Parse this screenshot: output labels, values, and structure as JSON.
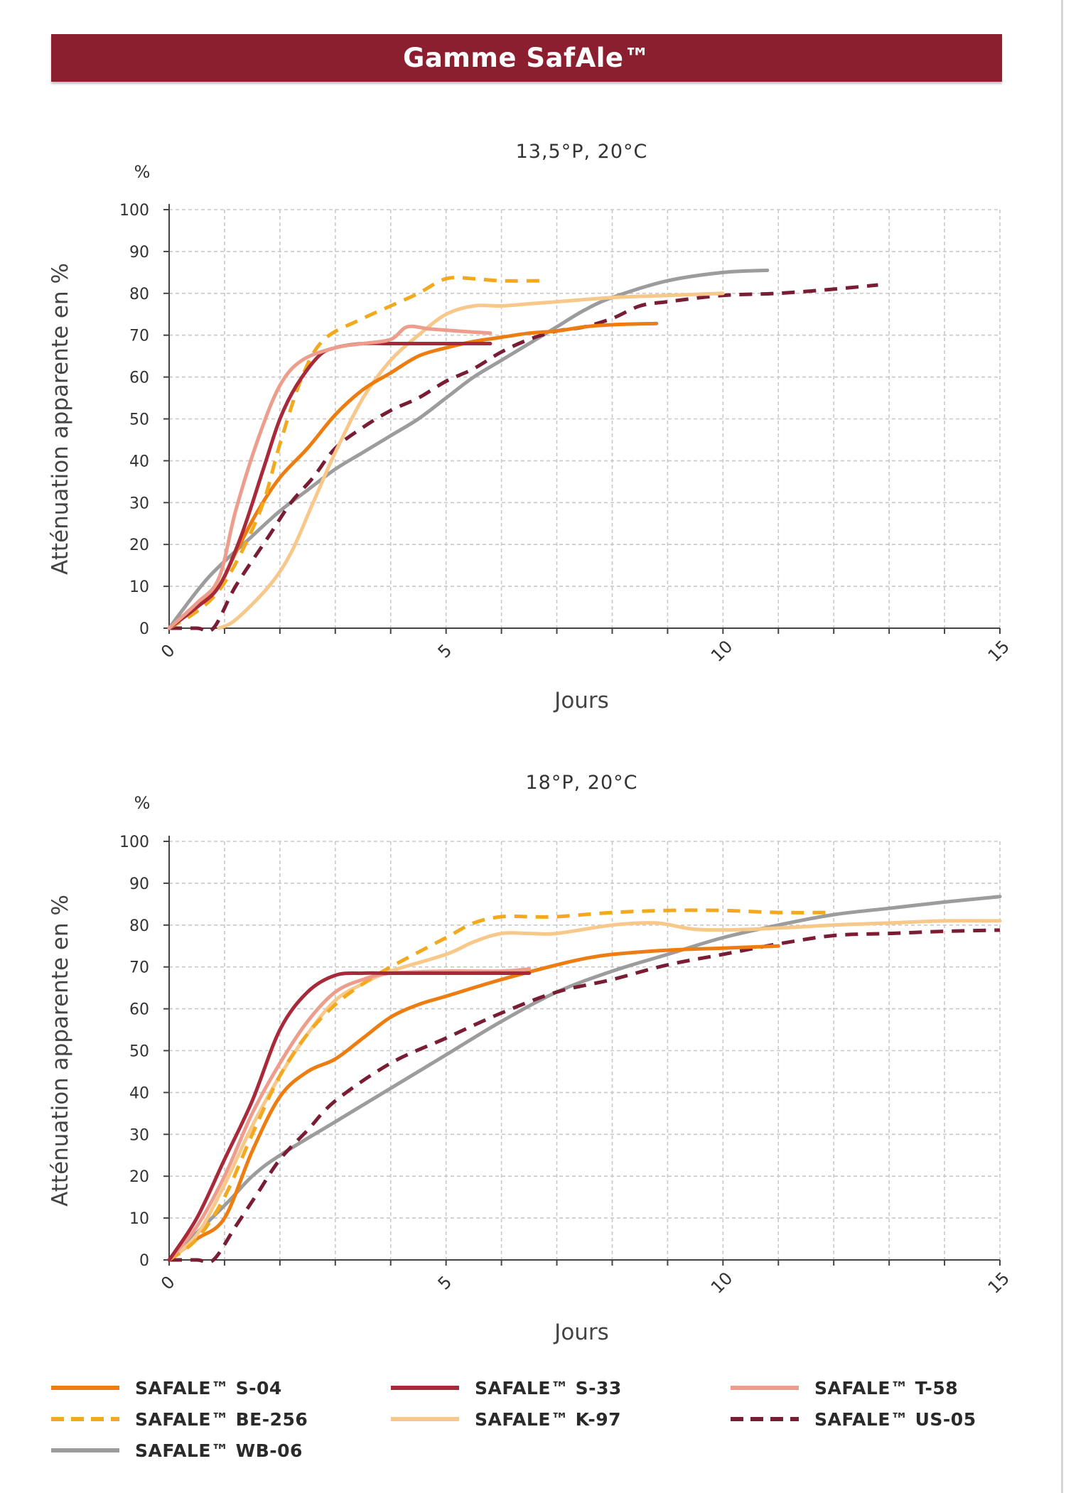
{
  "header": {
    "title": "Gamme SafAle™"
  },
  "colors": {
    "banner": "#8b1f2f",
    "s04": "#ee7d11",
    "s33": "#a82a3a",
    "t58": "#ec9d8c",
    "be256": "#f2a91d",
    "k97": "#f7c88a",
    "us05": "#7a1c33",
    "wb06": "#9c9c9c"
  },
  "legend": [
    {
      "key": "s04",
      "label": "SAFALE™ S-04",
      "dashed": false
    },
    {
      "key": "s33",
      "label": "SAFALE™ S-33",
      "dashed": false
    },
    {
      "key": "t58",
      "label": "SAFALE™ T-58",
      "dashed": false
    },
    {
      "key": "be256",
      "label": "SAFALE™ BE-256",
      "dashed": true
    },
    {
      "key": "k97",
      "label": "SAFALE™ K-97",
      "dashed": false
    },
    {
      "key": "us05",
      "label": "SAFALE™ US-05",
      "dashed": true
    },
    {
      "key": "wb06",
      "label": "SAFALE™ WB-06",
      "dashed": false
    }
  ],
  "chart_data": [
    {
      "type": "line",
      "title": "13,5°P, 20°C",
      "xlabel": "Jours",
      "ylabel": "Atténuation apparente en %",
      "yunit": "%",
      "xlim": [
        0,
        15
      ],
      "ylim": [
        0,
        100
      ],
      "xticks": [
        0,
        5,
        10,
        15
      ],
      "yticks": [
        0,
        10,
        20,
        30,
        40,
        50,
        60,
        70,
        80,
        90,
        100
      ],
      "grid": true,
      "series": [
        {
          "key": "wb06",
          "x": [
            0,
            0.7,
            1.5,
            2,
            2.5,
            3,
            3.5,
            4,
            4.5,
            5,
            5.5,
            6,
            6.5,
            7,
            7.5,
            8,
            9,
            10,
            10.8
          ],
          "y": [
            0,
            12,
            22,
            28,
            33,
            38,
            42,
            46,
            50,
            55,
            60,
            64,
            68,
            72,
            76,
            79,
            83,
            85,
            85.5
          ]
        },
        {
          "key": "us05",
          "x": [
            0,
            0.5,
            0.8,
            1.2,
            1.8,
            2.2,
            2.6,
            3,
            3.5,
            4,
            4.5,
            5,
            5.5,
            6,
            6.5,
            7,
            7.5,
            8,
            8.5,
            9,
            10,
            11,
            12,
            12.8
          ],
          "y": [
            0,
            0,
            0,
            10,
            22,
            30,
            36,
            43,
            48,
            52,
            55,
            59,
            62,
            66,
            69,
            71,
            72,
            74,
            77,
            78,
            79.5,
            80,
            81,
            82
          ]
        },
        {
          "key": "k97",
          "x": [
            0.9,
            1.2,
            1.8,
            2.2,
            2.6,
            3,
            3.5,
            4,
            4.5,
            5,
            5.5,
            6,
            6.5,
            7,
            8,
            9,
            10
          ],
          "y": [
            0,
            2,
            10,
            18,
            30,
            42,
            55,
            64,
            70,
            75,
            77,
            77,
            77.5,
            78,
            79,
            79.5,
            80
          ]
        },
        {
          "key": "s04",
          "x": [
            0,
            0.5,
            0.9,
            1.2,
            1.6,
            2,
            2.5,
            3,
            3.5,
            4,
            4.5,
            5,
            5.5,
            6,
            6.5,
            7,
            7.5,
            8,
            8.8
          ],
          "y": [
            0,
            5,
            10,
            18,
            28,
            36,
            43,
            51,
            57,
            61,
            65,
            67,
            68.5,
            69.5,
            70.5,
            71,
            72,
            72.5,
            72.8
          ]
        },
        {
          "key": "be256",
          "x": [
            0,
            0.5,
            0.9,
            1.3,
            1.7,
            2,
            2.4,
            2.8,
            3.5,
            4,
            4.5,
            5,
            5.5,
            6,
            6.8
          ],
          "y": [
            0,
            4,
            9,
            18,
            30,
            44,
            60,
            69,
            74,
            77,
            80,
            83.5,
            83.5,
            83,
            83
          ]
        },
        {
          "key": "s33",
          "x": [
            0,
            0.5,
            0.9,
            1.3,
            1.7,
            2,
            2.3,
            2.7,
            3,
            3.5,
            4,
            5,
            5.8
          ],
          "y": [
            0,
            5,
            10,
            22,
            38,
            50,
            58,
            65,
            67,
            68,
            68,
            68,
            68
          ]
        },
        {
          "key": "t58",
          "x": [
            0,
            0.5,
            0.9,
            1.2,
            1.6,
            2,
            2.4,
            3,
            3.5,
            4,
            4.3,
            4.7,
            5.2,
            5.8
          ],
          "y": [
            0,
            6,
            12,
            28,
            45,
            58,
            64,
            67,
            68,
            69,
            72,
            71.5,
            71,
            70.5
          ]
        }
      ]
    },
    {
      "type": "line",
      "title": "18°P, 20°C",
      "xlabel": "Jours",
      "ylabel": "Atténuation apparente en %",
      "yunit": "%",
      "xlim": [
        0,
        15
      ],
      "ylim": [
        0,
        100
      ],
      "xticks": [
        0,
        5,
        10,
        15
      ],
      "yticks": [
        0,
        10,
        20,
        30,
        40,
        50,
        60,
        70,
        80,
        90,
        100
      ],
      "grid": true,
      "series": [
        {
          "key": "wb06",
          "x": [
            0,
            1,
            1.5,
            2,
            3,
            4,
            5,
            6,
            7,
            8,
            9,
            10,
            11,
            12,
            13,
            14,
            15
          ],
          "y": [
            0,
            13,
            20,
            25,
            33,
            41,
            49,
            57,
            64,
            69,
            73,
            77,
            80,
            82.5,
            84,
            85.5,
            86.8
          ]
        },
        {
          "key": "us05",
          "x": [
            0,
            0.5,
            0.8,
            1.2,
            1.6,
            2,
            2.5,
            3,
            4,
            5,
            6,
            7,
            8,
            9,
            10,
            11,
            12,
            13,
            14,
            15
          ],
          "y": [
            0,
            0,
            0,
            8,
            16,
            24,
            31,
            38,
            47,
            53,
            59,
            64,
            67,
            70.5,
            73,
            75.5,
            77.5,
            78,
            78.5,
            78.8
          ]
        },
        {
          "key": "s04",
          "x": [
            0,
            0.5,
            1,
            1.5,
            2,
            2.5,
            3,
            3.5,
            4,
            4.5,
            5,
            6,
            7,
            7.5,
            8,
            9,
            10,
            11
          ],
          "y": [
            0,
            5,
            10,
            26,
            39,
            45,
            48,
            53,
            58,
            61,
            63,
            67,
            70.5,
            72,
            73,
            74,
            74.5,
            75
          ]
        },
        {
          "key": "k97",
          "x": [
            0,
            0.5,
            1,
            1.5,
            2,
            2.5,
            3,
            3.5,
            4,
            5,
            5.5,
            6,
            6.5,
            7,
            8,
            8.8,
            9.5,
            10.5,
            12,
            13,
            14,
            15
          ],
          "y": [
            0,
            6,
            18,
            32,
            44,
            54,
            62,
            66,
            69,
            73,
            76,
            78,
            78,
            78,
            80,
            80.5,
            79,
            79,
            80,
            80.5,
            81,
            81
          ]
        },
        {
          "key": "be256",
          "x": [
            0,
            0.5,
            1,
            1.5,
            2,
            2.5,
            3,
            3.5,
            4,
            5,
            5.5,
            6,
            6.5,
            7,
            8,
            9,
            10,
            11,
            12
          ],
          "y": [
            0,
            5,
            15,
            30,
            44,
            54,
            61,
            66,
            70,
            77,
            80.5,
            82,
            82,
            82,
            83,
            83.5,
            83.5,
            83,
            83
          ]
        },
        {
          "key": "t58",
          "x": [
            0,
            0.5,
            1,
            1.5,
            2,
            2.5,
            3,
            3.5,
            4,
            5,
            6,
            6.5
          ],
          "y": [
            0,
            8,
            20,
            35,
            47,
            57,
            64,
            67,
            68.5,
            69,
            69,
            69.5
          ]
        },
        {
          "key": "s33",
          "x": [
            0,
            0.5,
            1,
            1.5,
            2,
            2.5,
            3,
            3.5,
            4,
            5,
            6.5
          ],
          "y": [
            0,
            10,
            24,
            38,
            55,
            64,
            68,
            68.5,
            68.5,
            68.5,
            68.5
          ]
        }
      ]
    }
  ]
}
